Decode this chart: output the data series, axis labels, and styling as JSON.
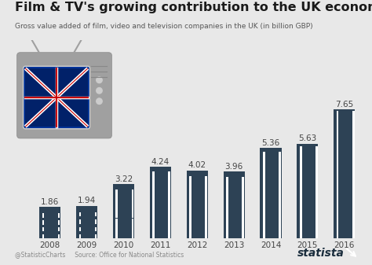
{
  "title": "Film & TV's growing contribution to the UK economy",
  "subtitle": "Gross value added of film, video and television companies in the UK (in billion GBP)",
  "years": [
    "2008",
    "2009",
    "2010",
    "2011",
    "2012",
    "2013",
    "2014",
    "2015",
    "2016"
  ],
  "values": [
    1.86,
    1.94,
    3.22,
    4.24,
    4.02,
    3.96,
    5.36,
    5.63,
    7.65
  ],
  "bar_color": "#2d4255",
  "bar_edge_color": "#1a2d3d",
  "hole_color": "#ffffff",
  "bg_color": "#e8e8e8",
  "title_color": "#1a1a1a",
  "subtitle_color": "#555555",
  "label_color": "#444444",
  "axis_label_color": "#444444",
  "source_color": "#888888",
  "brand_color": "#1a2d3d",
  "title_fontsize": 11.5,
  "subtitle_fontsize": 6.5,
  "label_fontsize": 7.5,
  "tick_fontsize": 7.5,
  "source_text": "@StatisticCharts     Source: Office for National Statistics",
  "brand": "statista",
  "ylim_max": 8.8
}
